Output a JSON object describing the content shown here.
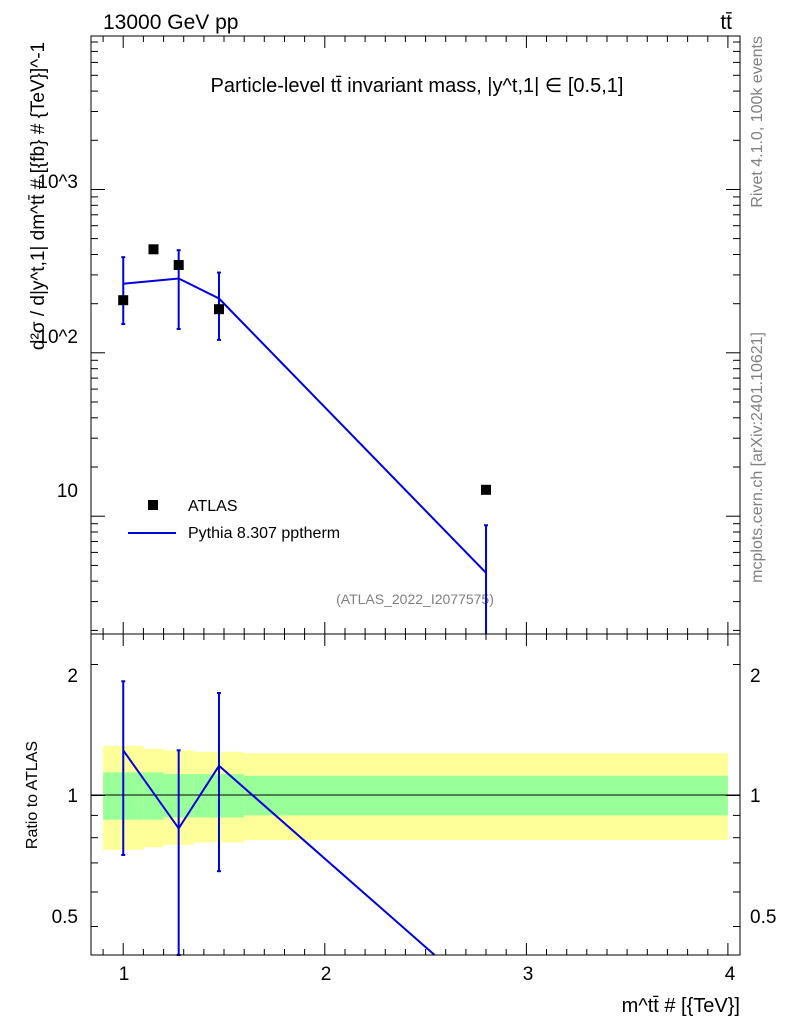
{
  "header": {
    "left": "13000 GeV pp",
    "right": "tt̄"
  },
  "side": {
    "rivet": "Rivet 4.1.0,  100k events",
    "mcplots": "mcplots.cern.ch [arXiv:2401.10621]"
  },
  "colors": {
    "mc": "#0000dd",
    "data": "#000000",
    "band_inner": "#99ff99",
    "band_outer": "#ffff99"
  },
  "chart_data": [
    {
      "type": "scatter",
      "title": "Particle-level tt̄ invariant mass, |y^t,1| ∈ [0.5,1]",
      "ylabel": "d²σ / d|y^t,1| dm^tt̄ # [{fb} # {TeV}]^-1",
      "xlabel": "",
      "yscale": "log",
      "xlim": [
        0.84,
        4.06
      ],
      "ylim": [
        1.9,
        8700
      ],
      "ytick_labels": [
        "10",
        "10^2",
        "10^3"
      ],
      "watermark": "(ATLAS_2022_I2077575)",
      "legend": [
        "ATLAS",
        "Pythia 8.307 pptherm"
      ],
      "legend_position": "lower-left",
      "series": [
        {
          "name": "ATLAS",
          "x": [
            1.0,
            1.15,
            1.275,
            1.475,
            2.8
          ],
          "y": [
            210,
            430,
            345,
            185,
            14.5
          ]
        },
        {
          "name": "Pythia 8.307 pptherm",
          "x": [
            1.0,
            1.275,
            1.475,
            2.8
          ],
          "y": [
            265,
            285,
            215,
            4.5
          ],
          "yerr_low": [
            115,
            145,
            95,
            4.4
          ],
          "yerr_high": [
            120,
            140,
            95,
            4.3
          ]
        }
      ]
    },
    {
      "type": "line",
      "ylabel": "Ratio to ATLAS",
      "xlabel": "m^tt̄ # [{TeV}]",
      "yscale": "log",
      "xlim": [
        0.84,
        4.06
      ],
      "ylim": [
        0.43,
        2.35
      ],
      "xtick_labels": [
        "1",
        "2",
        "3",
        "4"
      ],
      "ytick_labels": [
        "0.5",
        "1",
        "2"
      ],
      "series": [
        {
          "name": "Pythia 8.307 pptherm",
          "x": [
            1.0,
            1.275,
            1.475,
            2.545
          ],
          "y": [
            1.27,
            0.84,
            1.17,
            0.43
          ],
          "yerr_low": [
            0.54,
            0.48,
            0.5,
            0
          ],
          "yerr_high": [
            0.56,
            0.43,
            0.55,
            0
          ]
        }
      ],
      "uncertainty_band": {
        "x": [
          0.9,
          1.1,
          1.2,
          1.35,
          1.6,
          4.0
        ],
        "inner_low": [
          0.88,
          0.88,
          0.89,
          0.89,
          0.9,
          0.9
        ],
        "inner_high": [
          1.13,
          1.13,
          1.12,
          1.12,
          1.11,
          1.11
        ],
        "outer_low": [
          0.75,
          0.76,
          0.77,
          0.78,
          0.79,
          0.79
        ],
        "outer_high": [
          1.3,
          1.28,
          1.27,
          1.26,
          1.25,
          1.25
        ]
      }
    }
  ]
}
